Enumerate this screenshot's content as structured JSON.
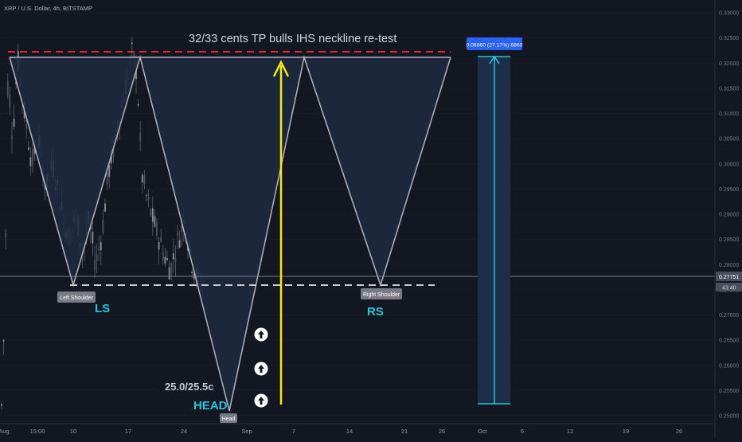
{
  "header": {
    "symbol_line": "XRP / U.S. Dollar, 4h, BITSTAMP"
  },
  "colors": {
    "background": "#131722",
    "grid": "#1c2030",
    "candle": "#6b6f7a",
    "pattern_line": "#b2b5be",
    "pattern_fill": "#1f2940",
    "neckline_red": "#e0262b",
    "arrow_yellow": "#f5ec0a",
    "cyan_text": "#26c6da",
    "projection_fill": "#1d2e4a",
    "projection_line": "#26c6da",
    "badge_blue": "#2962ff",
    "label_bg": "#787b86"
  },
  "chart_data": {
    "type": "candlestick",
    "title": "32/33 cents TP bulls IHS neckline re-test",
    "y_ticks": [
      "0.33000",
      "0.32500",
      "0.32000",
      "0.31500",
      "0.31000",
      "0.30500",
      "0.30000",
      "0.29500",
      "0.29000",
      "0.28500",
      "0.28000",
      "0.27500",
      "0.27000",
      "0.26500",
      "0.26000",
      "0.25500",
      "0.25000"
    ],
    "ylim": [
      0.2495,
      0.3315
    ],
    "x_ticks": [
      "Aug",
      "15:00",
      "10",
      "17",
      "24",
      "Sep",
      "7",
      "14",
      "21",
      "26",
      "Oct",
      "6",
      "12",
      "19",
      "26"
    ],
    "current_price": "0.27751",
    "countdown": "43:40",
    "annotations": {
      "left_shoulder": "Left Shoulder",
      "ls": "LS",
      "right_shoulder": "Right Shoulder",
      "rs": "RS",
      "head": "Head",
      "head_big": "HEAD",
      "target": "25.0/25.5c",
      "measure_badge": "0.06860 (27.17%) 6860"
    },
    "levels": {
      "neckline_red": 0.3222,
      "neckline_white": 0.3215,
      "shoulder_line": 0.2755,
      "head_low": 0.2512,
      "projection_top": 0.3212,
      "projection_bottom": 0.2527
    }
  }
}
